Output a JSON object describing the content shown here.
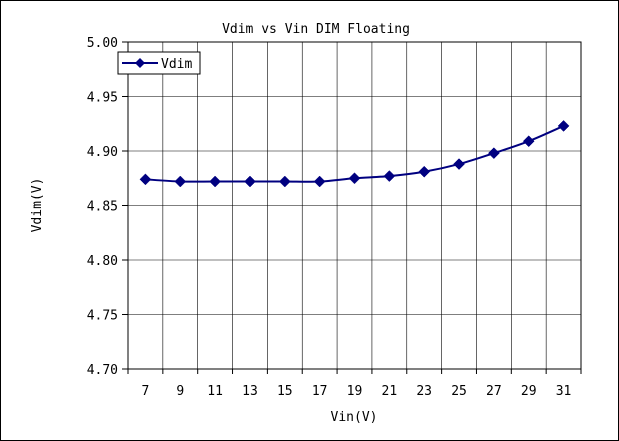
{
  "chart_data": {
    "type": "line",
    "title": "Vdim vs Vin DIM Floating",
    "xlabel": "Vin(V)",
    "ylabel": "Vdim(V)",
    "x": [
      7,
      9,
      11,
      13,
      15,
      17,
      19,
      21,
      23,
      25,
      27,
      29,
      31
    ],
    "x_ticks": [
      "7",
      "9",
      "11",
      "13",
      "15",
      "17",
      "19",
      "21",
      "23",
      "25",
      "27",
      "29",
      "31"
    ],
    "y_ticks": [
      "4.70",
      "4.75",
      "4.80",
      "4.85",
      "4.90",
      "4.95",
      "5.00"
    ],
    "ylim": [
      4.7,
      5.0
    ],
    "grid": true,
    "legend_position": "top-left",
    "series": [
      {
        "name": "Vdim",
        "color": "#000080",
        "marker": "diamond",
        "values": [
          4.874,
          4.872,
          4.872,
          4.872,
          4.872,
          4.872,
          4.875,
          4.877,
          4.881,
          4.888,
          4.898,
          4.909,
          4.923
        ]
      }
    ]
  }
}
